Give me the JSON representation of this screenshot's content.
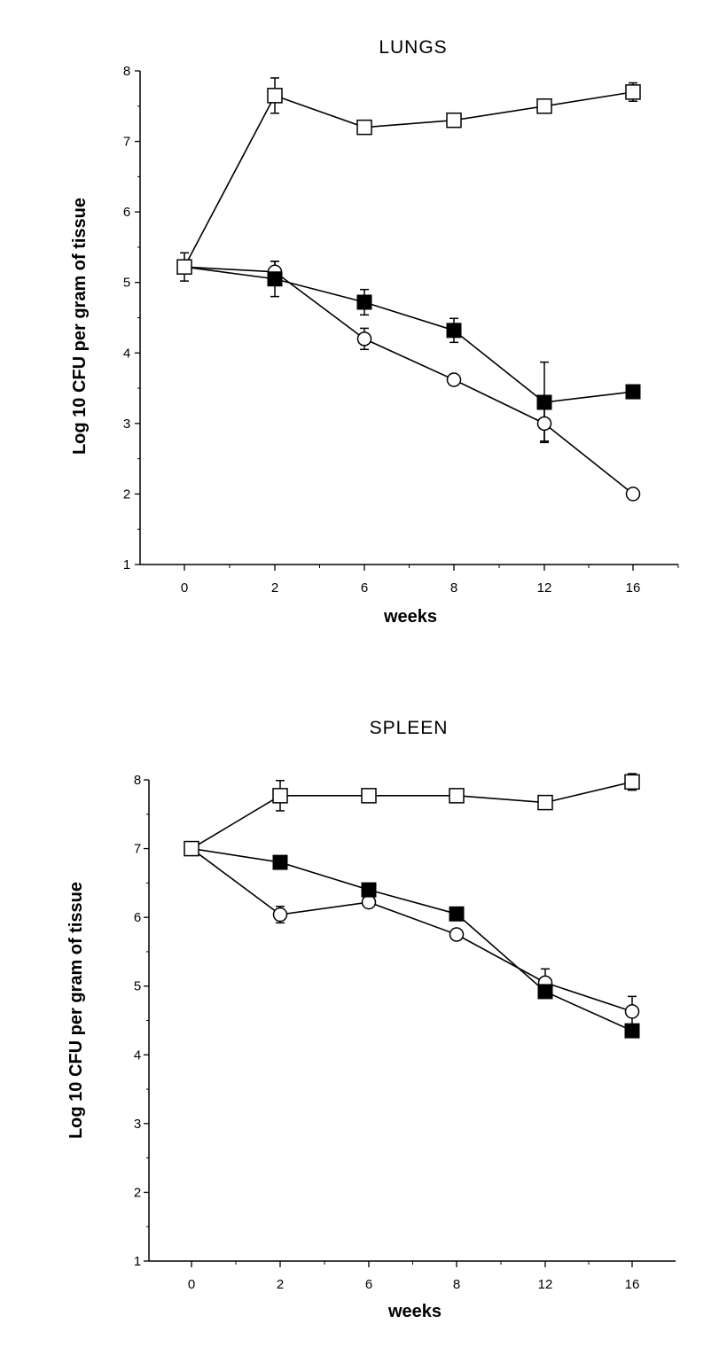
{
  "chart_data": [
    {
      "type": "line",
      "title": "LUNGS",
      "xlabel": "weeks",
      "ylabel": "Log 10 CFU per gram of tissue",
      "categories": [
        "0",
        "2",
        "6",
        "8",
        "12",
        "16"
      ],
      "ylim": [
        1,
        8
      ],
      "yticks": [
        1,
        2,
        3,
        4,
        5,
        6,
        7,
        8
      ],
      "grid": false,
      "series": [
        {
          "marker": "open-square",
          "values": [
            5.22,
            7.65,
            7.2,
            7.3,
            7.5,
            7.7
          ],
          "err": [
            0,
            0.25,
            0.08,
            0.06,
            0.05,
            0.13
          ]
        },
        {
          "marker": "filled-square",
          "values": [
            5.22,
            5.05,
            4.72,
            4.32,
            3.3,
            3.45
          ],
          "err": [
            0.2,
            0.25,
            0.18,
            0.17,
            0.57,
            0
          ]
        },
        {
          "marker": "open-circle",
          "values": [
            5.22,
            5.15,
            4.2,
            3.62,
            3.0,
            2.0
          ],
          "err": [
            0,
            0.15,
            0.15,
            0,
            0.25,
            0
          ]
        }
      ]
    },
    {
      "type": "line",
      "title": "SPLEEN",
      "xlabel": "weeks",
      "ylabel": "Log 10 CFU per gram of tissue",
      "categories": [
        "0",
        "2",
        "6",
        "8",
        "12",
        "16"
      ],
      "ylim": [
        1,
        8
      ],
      "yticks": [
        1,
        2,
        3,
        4,
        5,
        6,
        7,
        8
      ],
      "grid": false,
      "series": [
        {
          "marker": "open-square",
          "values": [
            7.0,
            7.77,
            7.77,
            7.77,
            7.67,
            7.97
          ],
          "err": [
            0,
            0.22,
            0,
            0,
            0,
            0.12
          ]
        },
        {
          "marker": "filled-square",
          "values": [
            7.0,
            6.8,
            6.4,
            6.05,
            4.92,
            4.35
          ],
          "err": [
            0,
            0,
            0,
            0,
            0,
            0
          ]
        },
        {
          "marker": "open-circle",
          "values": [
            7.0,
            6.04,
            6.22,
            5.75,
            5.05,
            4.63
          ],
          "err": [
            0,
            0.12,
            0,
            0,
            0.2,
            0.22
          ]
        }
      ]
    }
  ]
}
